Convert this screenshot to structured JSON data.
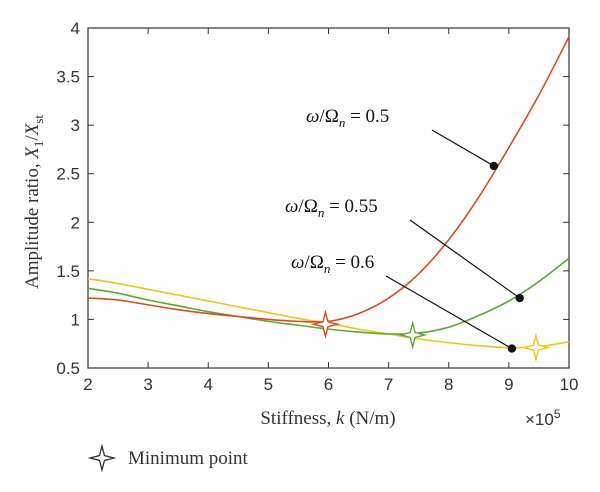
{
  "chart_data": {
    "type": "line",
    "xlabel_prefix": "Stiffness, ",
    "xlabel_var": "k",
    "xlabel_unit": " (N/m)",
    "ylabel_prefix": "Amplitude ratio, ",
    "ylabel_num": "X",
    "ylabel_num_sub": "1",
    "ylabel_den": "X",
    "ylabel_den_sub": "st",
    "x_multiplier_base": "×10",
    "x_multiplier_exp": "5",
    "xlim": [
      2,
      10
    ],
    "ylim": [
      0.5,
      4
    ],
    "xticks": [
      2,
      3,
      4,
      5,
      6,
      7,
      8,
      9,
      10
    ],
    "yticks": [
      0.5,
      1,
      1.5,
      2,
      2.5,
      3,
      3.5,
      4
    ],
    "xtick_labels": [
      "2",
      "3",
      "4",
      "5",
      "6",
      "7",
      "8",
      "9",
      "10"
    ],
    "ytick_labels": [
      "0.5",
      "1",
      "1.5",
      "2",
      "2.5",
      "3",
      "3.5",
      "4"
    ],
    "series": [
      {
        "ratio": "0.5",
        "color": "#d94a1e",
        "x": [
          2,
          2.5,
          3,
          3.5,
          4,
          4.5,
          5,
          5.5,
          6,
          6.5,
          7,
          7.5,
          8,
          8.5,
          9,
          9.5,
          10
        ],
        "y": [
          1.22,
          1.2,
          1.15,
          1.1,
          1.06,
          1.03,
          1.0,
          0.98,
          0.98,
          1.06,
          1.22,
          1.47,
          1.82,
          2.26,
          2.77,
          3.31,
          3.91
        ],
        "min_point": [
          5.95,
          0.95
        ],
        "annotation_point": [
          8.75,
          2.58
        ]
      },
      {
        "ratio": "0.55",
        "color": "#5aaa32",
        "x": [
          2,
          2.5,
          3,
          3.5,
          4,
          4.5,
          5,
          5.5,
          6,
          6.5,
          7,
          7.5,
          8,
          8.5,
          9,
          9.5,
          10
        ],
        "y": [
          1.32,
          1.27,
          1.2,
          1.14,
          1.08,
          1.03,
          0.98,
          0.94,
          0.9,
          0.87,
          0.85,
          0.86,
          0.92,
          1.04,
          1.19,
          1.39,
          1.63
        ],
        "min_point": [
          7.4,
          0.84
        ],
        "annotation_point": [
          9.18,
          1.22
        ]
      },
      {
        "ratio": "0.6",
        "color": "#f2c21c",
        "x": [
          2,
          2.5,
          3,
          3.5,
          4,
          4.5,
          5,
          5.5,
          6,
          6.5,
          7,
          7.5,
          8,
          8.5,
          9,
          9.5,
          10
        ],
        "y": [
          1.42,
          1.37,
          1.31,
          1.25,
          1.19,
          1.13,
          1.07,
          1.01,
          0.96,
          0.9,
          0.85,
          0.8,
          0.76,
          0.73,
          0.71,
          0.72,
          0.77
        ],
        "min_point": [
          9.45,
          0.71
        ],
        "annotation_point": [
          9.05,
          0.7
        ]
      }
    ],
    "annotations": [
      {
        "lhs_omega": "ω",
        "lhs_slash": "/",
        "lhs_Omega": "Ω",
        "lhs_sub": "n",
        "eq": " =",
        "value": "0.5"
      },
      {
        "lhs_omega": "ω",
        "lhs_slash": "/",
        "lhs_Omega": "Ω",
        "lhs_sub": "n",
        "eq": " =",
        "value": "0.55"
      },
      {
        "lhs_omega": "ω",
        "lhs_slash": "/",
        "lhs_Omega": "Ω",
        "lhs_sub": "n",
        "eq": " =",
        "value": "0.6"
      }
    ],
    "legend": {
      "label": "Minimum point",
      "marker_color": "#333333",
      "placement": "bottom-left"
    },
    "marker_colors": [
      "#d94a1e",
      "#5aaa32",
      "#f2c21c"
    ]
  }
}
